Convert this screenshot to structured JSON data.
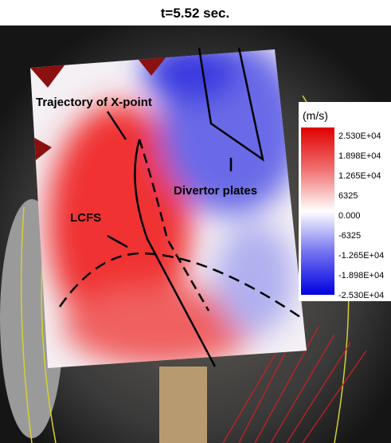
{
  "title": "t=5.52 sec.",
  "annotations": [
    "Trajectory of X-point",
    "Divertor plates",
    "LCFS"
  ],
  "colorbar": {
    "unit": "(m/s)",
    "labels": [
      "2.530E+04",
      "1.898E+04",
      "1.265E+04",
      "6325",
      "0.000",
      "-6325",
      "-1.265E+04",
      "-1.898E+04",
      "-2.530E+04"
    ]
  }
}
